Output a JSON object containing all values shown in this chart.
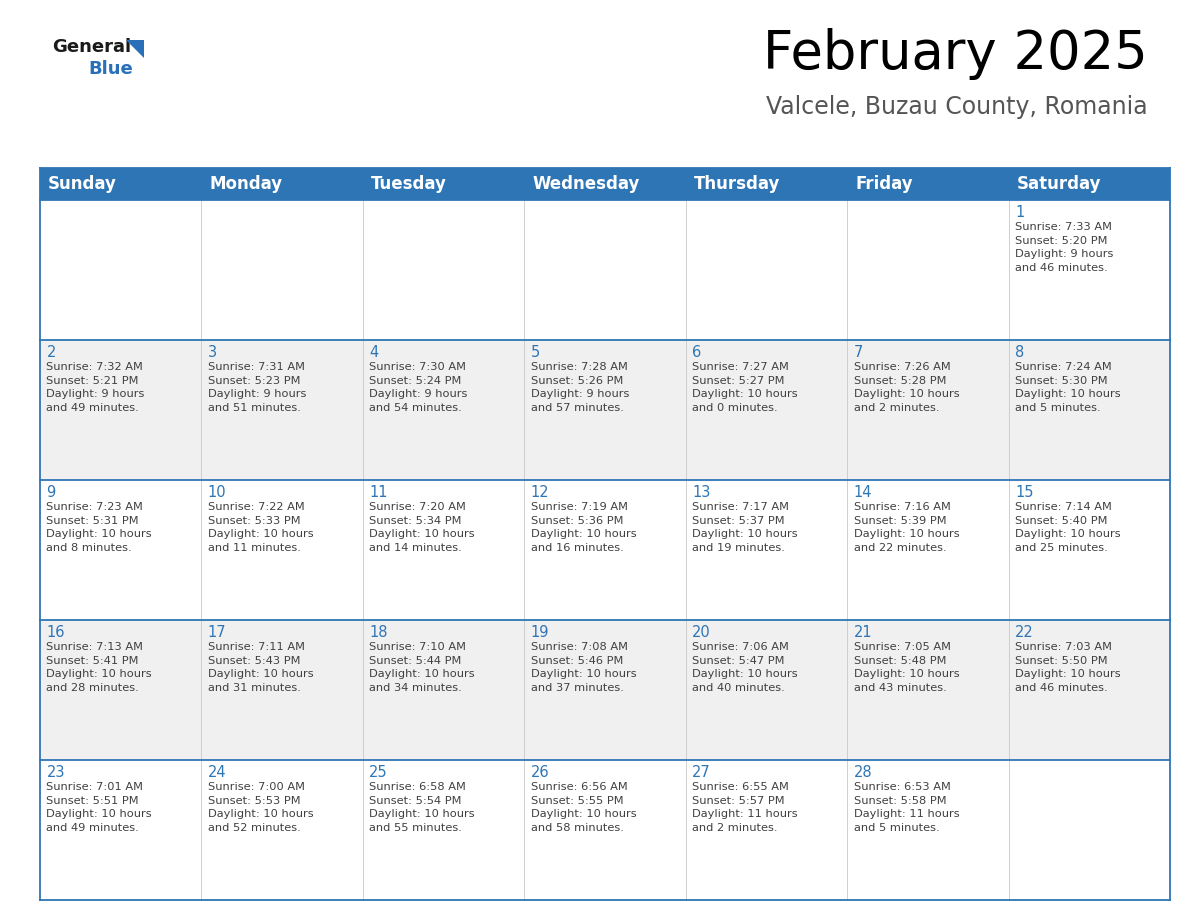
{
  "title": "February 2025",
  "subtitle": "Valcele, Buzau County, Romania",
  "header_color": "#2E75B6",
  "header_text_color": "#FFFFFF",
  "cell_line_color": "#2E75B6",
  "day_number_color": "#2E75B6",
  "cell_text_color": "#404040",
  "background_color": "#FFFFFF",
  "alt_row_color": "#F0F0F0",
  "days_of_week": [
    "Sunday",
    "Monday",
    "Tuesday",
    "Wednesday",
    "Thursday",
    "Friday",
    "Saturday"
  ],
  "weeks": [
    [
      {
        "day": "",
        "info": ""
      },
      {
        "day": "",
        "info": ""
      },
      {
        "day": "",
        "info": ""
      },
      {
        "day": "",
        "info": ""
      },
      {
        "day": "",
        "info": ""
      },
      {
        "day": "",
        "info": ""
      },
      {
        "day": "1",
        "info": "Sunrise: 7:33 AM\nSunset: 5:20 PM\nDaylight: 9 hours\nand 46 minutes."
      }
    ],
    [
      {
        "day": "2",
        "info": "Sunrise: 7:32 AM\nSunset: 5:21 PM\nDaylight: 9 hours\nand 49 minutes."
      },
      {
        "day": "3",
        "info": "Sunrise: 7:31 AM\nSunset: 5:23 PM\nDaylight: 9 hours\nand 51 minutes."
      },
      {
        "day": "4",
        "info": "Sunrise: 7:30 AM\nSunset: 5:24 PM\nDaylight: 9 hours\nand 54 minutes."
      },
      {
        "day": "5",
        "info": "Sunrise: 7:28 AM\nSunset: 5:26 PM\nDaylight: 9 hours\nand 57 minutes."
      },
      {
        "day": "6",
        "info": "Sunrise: 7:27 AM\nSunset: 5:27 PM\nDaylight: 10 hours\nand 0 minutes."
      },
      {
        "day": "7",
        "info": "Sunrise: 7:26 AM\nSunset: 5:28 PM\nDaylight: 10 hours\nand 2 minutes."
      },
      {
        "day": "8",
        "info": "Sunrise: 7:24 AM\nSunset: 5:30 PM\nDaylight: 10 hours\nand 5 minutes."
      }
    ],
    [
      {
        "day": "9",
        "info": "Sunrise: 7:23 AM\nSunset: 5:31 PM\nDaylight: 10 hours\nand 8 minutes."
      },
      {
        "day": "10",
        "info": "Sunrise: 7:22 AM\nSunset: 5:33 PM\nDaylight: 10 hours\nand 11 minutes."
      },
      {
        "day": "11",
        "info": "Sunrise: 7:20 AM\nSunset: 5:34 PM\nDaylight: 10 hours\nand 14 minutes."
      },
      {
        "day": "12",
        "info": "Sunrise: 7:19 AM\nSunset: 5:36 PM\nDaylight: 10 hours\nand 16 minutes."
      },
      {
        "day": "13",
        "info": "Sunrise: 7:17 AM\nSunset: 5:37 PM\nDaylight: 10 hours\nand 19 minutes."
      },
      {
        "day": "14",
        "info": "Sunrise: 7:16 AM\nSunset: 5:39 PM\nDaylight: 10 hours\nand 22 minutes."
      },
      {
        "day": "15",
        "info": "Sunrise: 7:14 AM\nSunset: 5:40 PM\nDaylight: 10 hours\nand 25 minutes."
      }
    ],
    [
      {
        "day": "16",
        "info": "Sunrise: 7:13 AM\nSunset: 5:41 PM\nDaylight: 10 hours\nand 28 minutes."
      },
      {
        "day": "17",
        "info": "Sunrise: 7:11 AM\nSunset: 5:43 PM\nDaylight: 10 hours\nand 31 minutes."
      },
      {
        "day": "18",
        "info": "Sunrise: 7:10 AM\nSunset: 5:44 PM\nDaylight: 10 hours\nand 34 minutes."
      },
      {
        "day": "19",
        "info": "Sunrise: 7:08 AM\nSunset: 5:46 PM\nDaylight: 10 hours\nand 37 minutes."
      },
      {
        "day": "20",
        "info": "Sunrise: 7:06 AM\nSunset: 5:47 PM\nDaylight: 10 hours\nand 40 minutes."
      },
      {
        "day": "21",
        "info": "Sunrise: 7:05 AM\nSunset: 5:48 PM\nDaylight: 10 hours\nand 43 minutes."
      },
      {
        "day": "22",
        "info": "Sunrise: 7:03 AM\nSunset: 5:50 PM\nDaylight: 10 hours\nand 46 minutes."
      }
    ],
    [
      {
        "day": "23",
        "info": "Sunrise: 7:01 AM\nSunset: 5:51 PM\nDaylight: 10 hours\nand 49 minutes."
      },
      {
        "day": "24",
        "info": "Sunrise: 7:00 AM\nSunset: 5:53 PM\nDaylight: 10 hours\nand 52 minutes."
      },
      {
        "day": "25",
        "info": "Sunrise: 6:58 AM\nSunset: 5:54 PM\nDaylight: 10 hours\nand 55 minutes."
      },
      {
        "day": "26",
        "info": "Sunrise: 6:56 AM\nSunset: 5:55 PM\nDaylight: 10 hours\nand 58 minutes."
      },
      {
        "day": "27",
        "info": "Sunrise: 6:55 AM\nSunset: 5:57 PM\nDaylight: 11 hours\nand 2 minutes."
      },
      {
        "day": "28",
        "info": "Sunrise: 6:53 AM\nSunset: 5:58 PM\nDaylight: 11 hours\nand 5 minutes."
      },
      {
        "day": "",
        "info": ""
      }
    ]
  ],
  "logo_general_color": "#1a1a1a",
  "logo_blue_color": "#2970B8",
  "title_fontsize": 38,
  "subtitle_fontsize": 17,
  "header_fontsize": 12,
  "day_num_fontsize": 10.5,
  "cell_text_fontsize": 8.2
}
